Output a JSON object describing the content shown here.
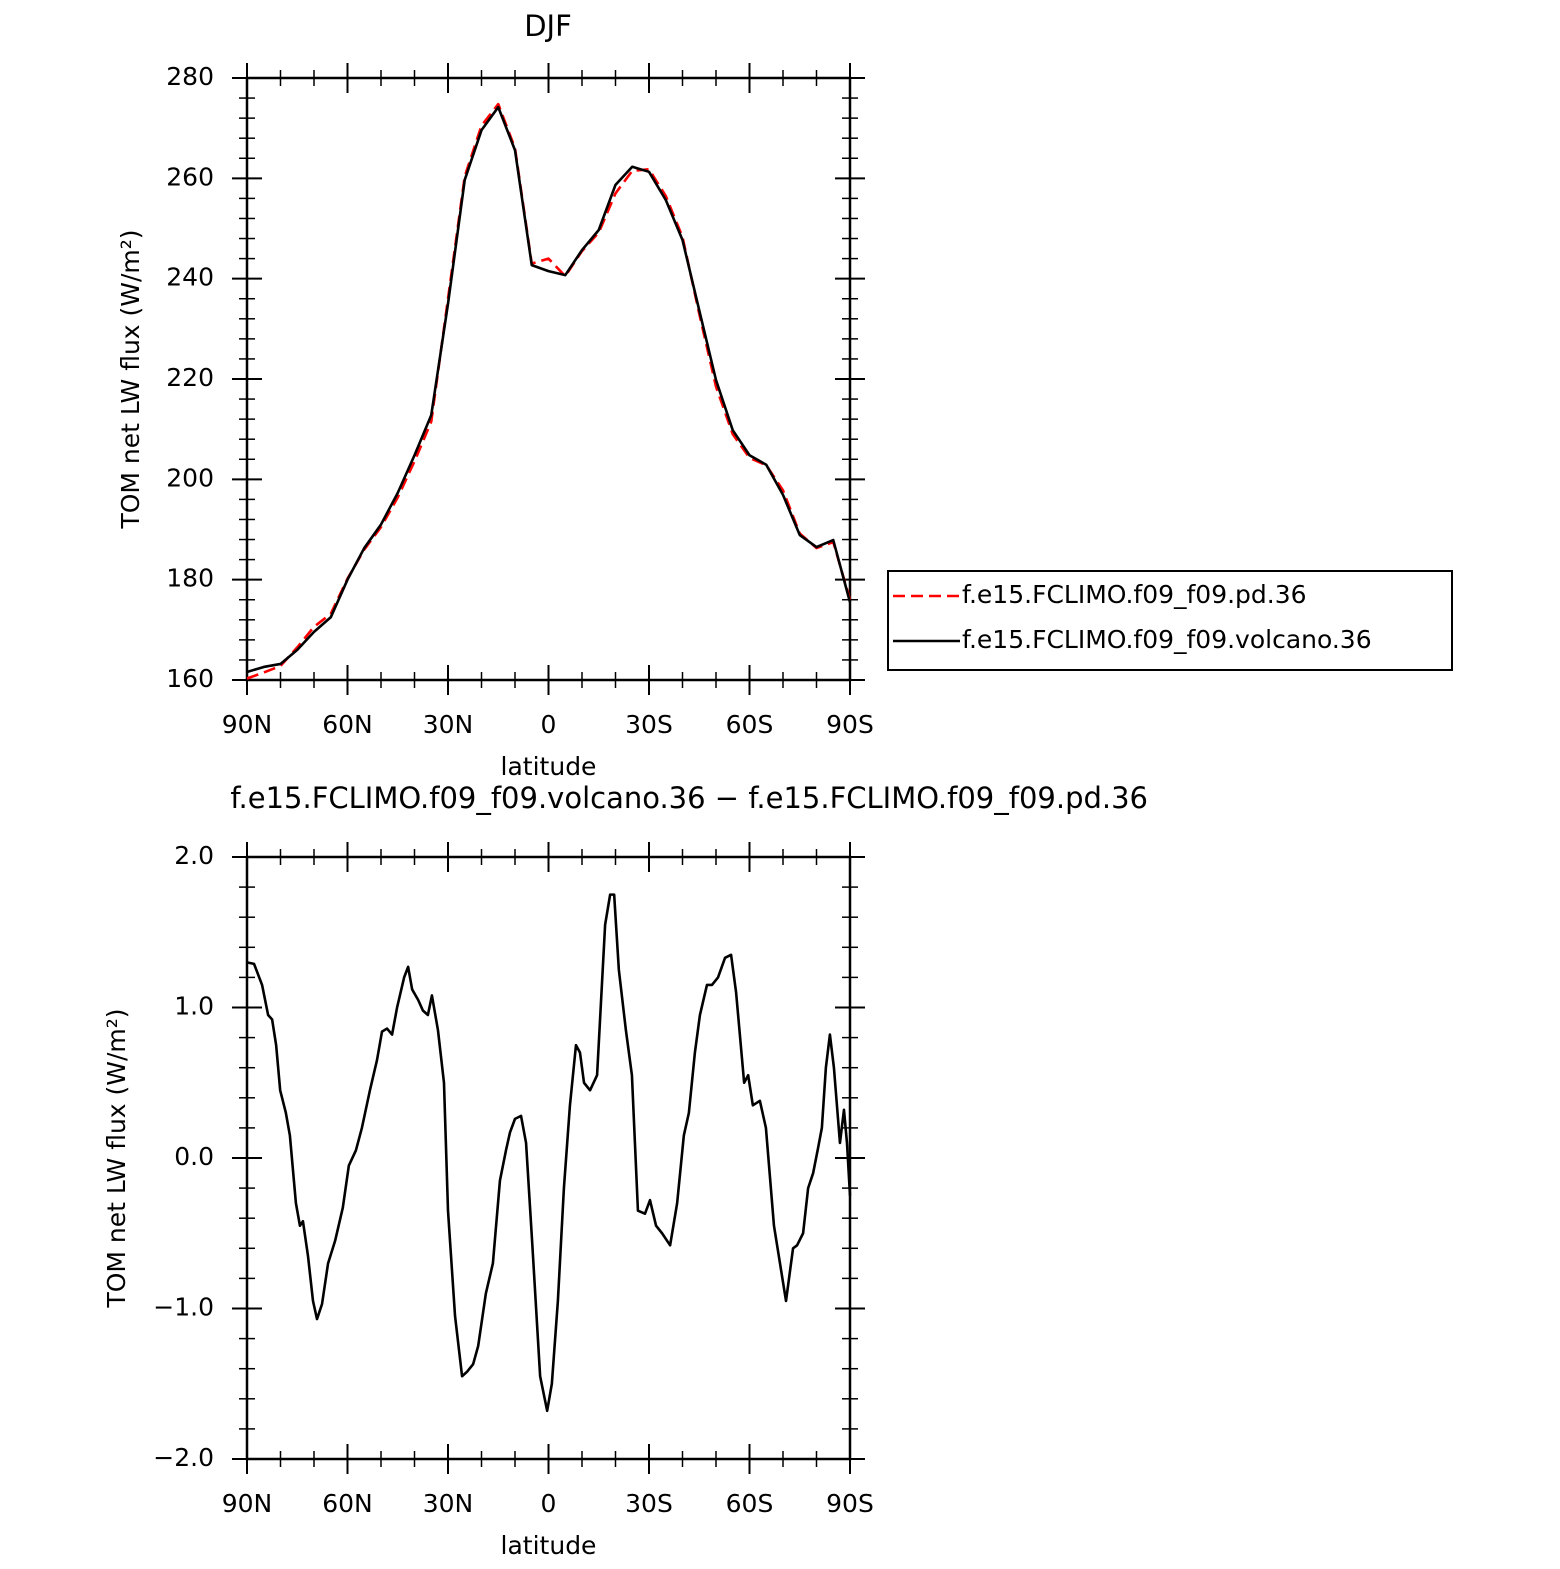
{
  "chart_data": [
    {
      "type": "line",
      "title": "DJF",
      "x_label": "latitude",
      "y_label": "TOM net LW flux (W/m²)",
      "xlim": [
        90,
        -90
      ],
      "xticks": [
        {
          "value": 90,
          "label": "90N"
        },
        {
          "value": 60,
          "label": "60N"
        },
        {
          "value": 30,
          "label": "30N"
        },
        0,
        {
          "value": -30,
          "label": "30S"
        },
        {
          "value": -60,
          "label": "60S"
        },
        {
          "value": -90,
          "label": "90S"
        }
      ],
      "ylim": [
        160,
        280
      ],
      "yticks": [
        160,
        180,
        200,
        220,
        240,
        260,
        280
      ],
      "legend": "right",
      "x": [
        90,
        85,
        80,
        75,
        70,
        65,
        60,
        55,
        50,
        45,
        40,
        35,
        30,
        25,
        20,
        15,
        10,
        5,
        0,
        -5,
        -10,
        -15,
        -20,
        -25,
        -30,
        -35,
        -40,
        -45,
        -50,
        -55,
        -60,
        -65,
        -70,
        -75,
        -80,
        -85,
        -90
      ],
      "series": [
        {
          "name": "f.e15.FCLIMO.f09_f09.pd.36",
          "color": "#ff0000",
          "dash": true,
          "values": [
            160.3,
            161.5,
            162.8,
            166.5,
            170.6,
            173.2,
            180.2,
            186,
            190.5,
            196.4,
            203.6,
            211.5,
            236,
            260.4,
            270.5,
            274.8,
            266,
            243,
            244,
            240.5,
            245.5,
            249.2,
            257,
            261.5,
            261.8,
            256.5,
            248.3,
            233,
            218.5,
            209,
            204.3,
            202.8,
            197.8,
            189.2,
            186.3,
            187.5,
            176
          ]
        },
        {
          "name": "f.e15.FCLIMO.f09_f09.volcano.36",
          "color": "#000000",
          "dash": false,
          "values": [
            161.6,
            162.6,
            163.2,
            166,
            169.6,
            172.5,
            180,
            186.3,
            191,
            197.3,
            204.8,
            212.8,
            235,
            259.7,
            269.6,
            274.2,
            265.6,
            242.7,
            241.5,
            240.7,
            245.7,
            249.7,
            258.7,
            262.3,
            261.3,
            255.7,
            247.7,
            233.7,
            219.8,
            209.8,
            204.8,
            202.9,
            196.9,
            188.9,
            186.5,
            187.9,
            175.5
          ]
        }
      ]
    },
    {
      "type": "line",
      "title": "f.e15.FCLIMO.f09_f09.volcano.36 − f.e15.FCLIMO.f09_f09.pd.36",
      "x_label": "latitude",
      "y_label": "TOM net LW flux (W/m²)",
      "xlim": [
        90,
        -90
      ],
      "xticks": [
        {
          "value": 90,
          "label": "90N"
        },
        {
          "value": 60,
          "label": "60N"
        },
        {
          "value": 30,
          "label": "30N"
        },
        0,
        {
          "value": -30,
          "label": "30S"
        },
        {
          "value": -60,
          "label": "60S"
        },
        {
          "value": -90,
          "label": "90S"
        }
      ],
      "ylim": [
        -2,
        2
      ],
      "yticks": [
        {
          "value": -2,
          "label": "−2.0"
        },
        {
          "value": -1,
          "label": "−1.0"
        },
        {
          "value": 0,
          "label": "0.0"
        },
        {
          "value": 1,
          "label": "1.0"
        },
        {
          "value": 2,
          "label": "2.0"
        }
      ],
      "color": "#000000",
      "x": [
        90,
        87.9,
        85.5,
        83.7,
        82.5,
        81.3,
        80.1,
        78.4,
        77.2,
        75.4,
        74.2,
        73.3,
        71.8,
        70.3,
        69.1,
        67.6,
        65.8,
        63.7,
        61.4,
        59.6,
        57.5,
        55.7,
        53.3,
        51.2,
        49.7,
        48.2,
        46.7,
        45.2,
        43.1,
        41.9,
        40.7,
        38.9,
        37.5,
        36,
        34.8,
        33,
        31.2,
        30,
        27.9,
        25.8,
        24.3,
        22.5,
        21,
        18.7,
        16.6,
        14.5,
        12.7,
        11.5,
        10,
        8.2,
        6.7,
        4.9,
        2.5,
        0.4,
        -1,
        -2.8,
        -4.6,
        -6.4,
        -8.2,
        -9.4,
        -10.6,
        -12.4,
        -14.5,
        -16.9,
        -18.4,
        -19.6,
        -21,
        -23.1,
        -24.9,
        -26.7,
        -28.8,
        -30.3,
        -32.1,
        -33.9,
        -36.3,
        -38.4,
        -40.4,
        -41.9,
        -43.7,
        -45.2,
        -47.3,
        -48.8,
        -50.6,
        -52.7,
        -54.5,
        -56,
        -58.4,
        -59.6,
        -61,
        -63.1,
        -64.9,
        -67.3,
        -69.1,
        -70.9,
        -73,
        -74.2,
        -76,
        -77.5,
        -79,
        -80.5,
        -81.6,
        -82.8,
        -84,
        -85.2,
        -87,
        -88.2,
        -89.1,
        -90
      ],
      "values": [
        1.3,
        1.29,
        1.15,
        0.95,
        0.92,
        0.75,
        0.45,
        0.3,
        0.15,
        -0.3,
        -0.45,
        -0.42,
        -0.65,
        -0.95,
        -1.07,
        -0.97,
        -0.7,
        -0.55,
        -0.33,
        -0.05,
        0.05,
        0.2,
        0.45,
        0.65,
        0.84,
        0.86,
        0.82,
        1.0,
        1.2,
        1.27,
        1.12,
        1.05,
        0.98,
        0.95,
        1.08,
        0.85,
        0.5,
        -0.35,
        -1.05,
        -1.45,
        -1.42,
        -1.37,
        -1.25,
        -0.9,
        -0.7,
        -0.15,
        0.05,
        0.17,
        0.26,
        0.28,
        0.1,
        -0.55,
        -1.45,
        -1.68,
        -1.5,
        -0.95,
        -0.2,
        0.35,
        0.75,
        0.7,
        0.5,
        0.45,
        0.55,
        1.55,
        1.75,
        1.75,
        1.25,
        0.85,
        0.55,
        -0.35,
        -0.37,
        -0.28,
        -0.45,
        -0.5,
        -0.58,
        -0.3,
        0.15,
        0.3,
        0.7,
        0.95,
        1.15,
        1.15,
        1.2,
        1.33,
        1.35,
        1.1,
        0.5,
        0.55,
        0.35,
        0.38,
        0.2,
        -0.45,
        -0.7,
        -0.95,
        -0.6,
        -0.58,
        -0.5,
        -0.2,
        -0.1,
        0.07,
        0.2,
        0.6,
        0.82,
        0.6,
        0.1,
        0.32,
        0.1,
        -0.25
      ]
    }
  ]
}
